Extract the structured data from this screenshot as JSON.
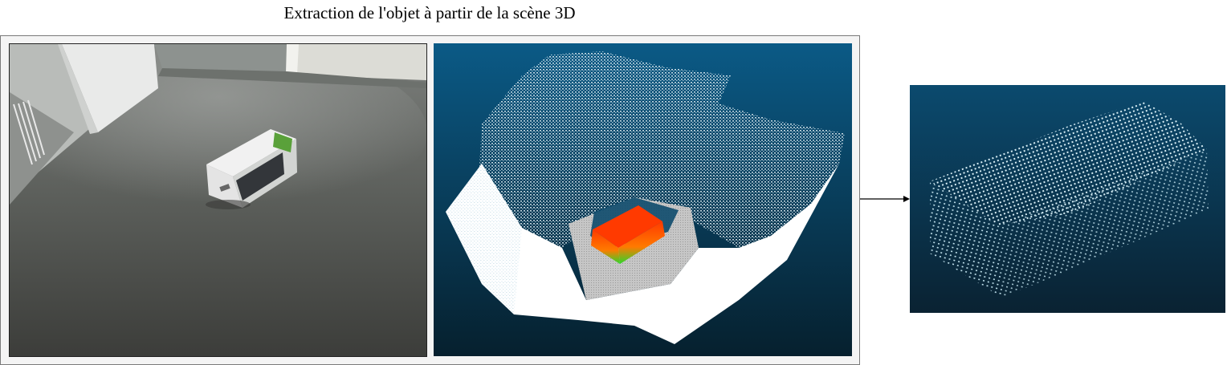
{
  "diagram": {
    "title": "Extraction de l'objet à partir de la scène 3D",
    "panels": [
      {
        "name": "rgb-photo",
        "description_icon": "photo-icon"
      },
      {
        "name": "scene-point-cloud",
        "description_icon": "point-cloud-icon"
      },
      {
        "name": "extracted-object-cloud",
        "description_icon": "point-cloud-icon"
      }
    ],
    "colors": {
      "cloud_bg_top": "#0b5a86",
      "cloud_bg_bottom": "#06202e",
      "object_red": "#ff3a00",
      "object_green": "#2bd82b",
      "floor_gray": "#c9c9c9"
    }
  }
}
